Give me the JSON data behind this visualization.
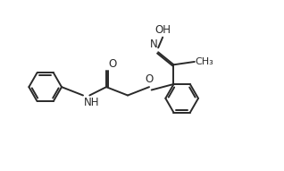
{
  "bg_color": "#ffffff",
  "line_color": "#2a2a2a",
  "line_width": 1.4,
  "font_size": 8.5,
  "fig_width": 3.18,
  "fig_height": 1.91,
  "dpi": 100,
  "xlim": [
    0,
    9.5
  ],
  "ylim": [
    0.5,
    6.0
  ]
}
